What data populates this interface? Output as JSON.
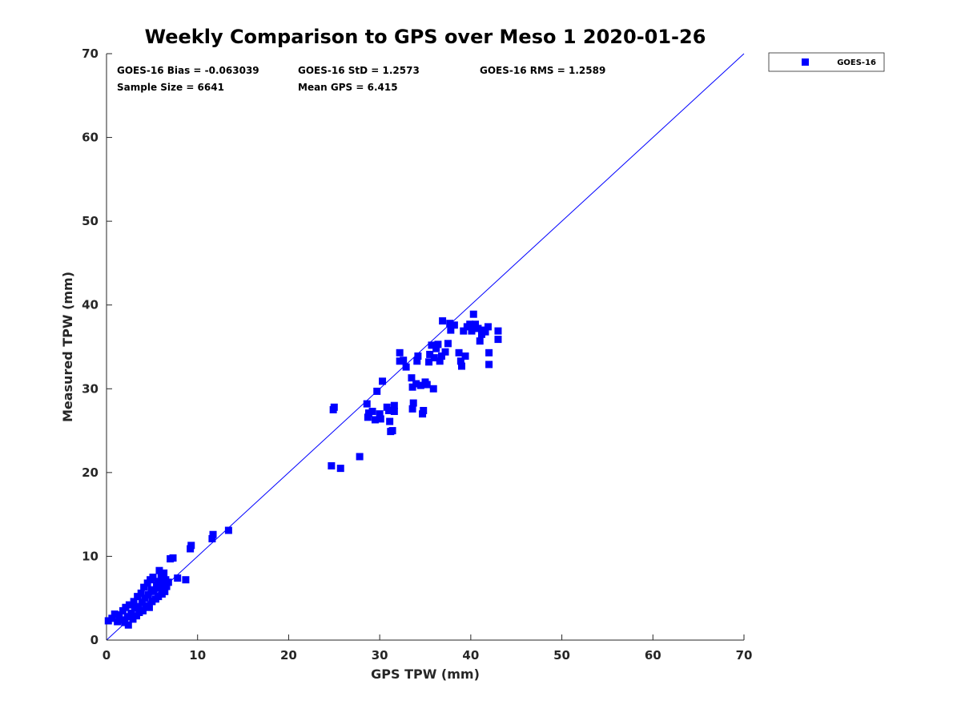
{
  "chart_data": {
    "type": "scatter",
    "title": "Weekly Comparison to GPS over Meso 1 2020-01-26",
    "xlabel": "GPS TPW (mm)",
    "ylabel": "Measured TPW (mm)",
    "xlim": [
      0,
      70
    ],
    "ylim": [
      0,
      70
    ],
    "xticks": [
      "0",
      "10",
      "20",
      "30",
      "40",
      "50",
      "60",
      "70"
    ],
    "yticks": [
      "0",
      "10",
      "20",
      "30",
      "40",
      "50",
      "60",
      "70"
    ],
    "grid": false,
    "legend_position": "outside-top-right",
    "reference_line": {
      "from": [
        0,
        0
      ],
      "to": [
        70,
        70
      ],
      "color": "#0000ff"
    },
    "stats": {
      "bias": "GOES-16 Bias = -0.063039",
      "std": "GOES-16 StD = 1.2573",
      "rms": "GOES-16 RMS = 1.2589",
      "sample_size": "Sample Size = 6641",
      "mean_gps": "Mean GPS = 6.415"
    },
    "series": [
      {
        "name": "GOES-16",
        "color": "#0000ff",
        "marker": "square",
        "points": [
          [
            0.2,
            2.3
          ],
          [
            0.6,
            2.6
          ],
          [
            0.9,
            3.1
          ],
          [
            1.2,
            2.2
          ],
          [
            1.4,
            3.0
          ],
          [
            1.6,
            2.4
          ],
          [
            1.8,
            3.5
          ],
          [
            2.0,
            2.1
          ],
          [
            2.1,
            3.9
          ],
          [
            2.3,
            2.8
          ],
          [
            2.4,
            1.8
          ],
          [
            2.5,
            4.2
          ],
          [
            2.7,
            3.2
          ],
          [
            2.9,
            2.5
          ],
          [
            3.0,
            4.6
          ],
          [
            3.1,
            3.8
          ],
          [
            3.3,
            2.9
          ],
          [
            3.4,
            5.2
          ],
          [
            3.5,
            4.0
          ],
          [
            3.6,
            3.3
          ],
          [
            3.8,
            5.6
          ],
          [
            3.9,
            4.5
          ],
          [
            4.0,
            3.5
          ],
          [
            4.1,
            6.3
          ],
          [
            4.2,
            5.0
          ],
          [
            4.3,
            4.1
          ],
          [
            4.5,
            6.8
          ],
          [
            4.6,
            5.4
          ],
          [
            4.7,
            3.9
          ],
          [
            4.8,
            7.2
          ],
          [
            4.9,
            6.0
          ],
          [
            5.0,
            4.6
          ],
          [
            5.1,
            7.5
          ],
          [
            5.2,
            5.8
          ],
          [
            5.4,
            4.9
          ],
          [
            5.5,
            6.6
          ],
          [
            5.6,
            7.0
          ],
          [
            5.7,
            5.2
          ],
          [
            5.8,
            8.3
          ],
          [
            5.9,
            6.2
          ],
          [
            6.0,
            7.6
          ],
          [
            6.1,
            5.5
          ],
          [
            6.2,
            6.9
          ],
          [
            6.3,
            8.0
          ],
          [
            6.4,
            5.8
          ],
          [
            6.5,
            7.2
          ],
          [
            6.6,
            6.4
          ],
          [
            6.8,
            6.9
          ],
          [
            7.0,
            9.7
          ],
          [
            7.3,
            9.8
          ],
          [
            7.8,
            7.4
          ],
          [
            8.7,
            7.2
          ],
          [
            9.2,
            10.9
          ],
          [
            9.3,
            11.3
          ],
          [
            11.6,
            12.1
          ],
          [
            11.7,
            12.6
          ],
          [
            13.4,
            13.1
          ],
          [
            24.7,
            20.8
          ],
          [
            24.9,
            27.5
          ],
          [
            25.0,
            27.8
          ],
          [
            25.7,
            20.5
          ],
          [
            27.8,
            21.9
          ],
          [
            28.6,
            28.2
          ],
          [
            28.7,
            26.6
          ],
          [
            28.8,
            27.1
          ],
          [
            29.2,
            27.3
          ],
          [
            29.5,
            26.3
          ],
          [
            29.7,
            29.7
          ],
          [
            30.0,
            27.0
          ],
          [
            30.1,
            26.4
          ],
          [
            30.3,
            30.9
          ],
          [
            30.8,
            27.8
          ],
          [
            31.0,
            27.4
          ],
          [
            31.1,
            26.1
          ],
          [
            31.2,
            24.9
          ],
          [
            31.4,
            25.0
          ],
          [
            31.6,
            27.3
          ],
          [
            31.6,
            28.0
          ],
          [
            32.2,
            33.3
          ],
          [
            32.2,
            34.3
          ],
          [
            32.6,
            33.4
          ],
          [
            32.9,
            32.6
          ],
          [
            33.5,
            31.3
          ],
          [
            33.6,
            30.2
          ],
          [
            33.6,
            27.6
          ],
          [
            33.7,
            28.3
          ],
          [
            34.0,
            30.6
          ],
          [
            34.1,
            33.3
          ],
          [
            34.2,
            33.9
          ],
          [
            34.5,
            30.4
          ],
          [
            34.7,
            27.0
          ],
          [
            34.8,
            27.4
          ],
          [
            35.0,
            30.8
          ],
          [
            35.2,
            30.5
          ],
          [
            35.4,
            33.2
          ],
          [
            35.5,
            34.1
          ],
          [
            35.7,
            35.2
          ],
          [
            35.9,
            30.0
          ],
          [
            36.0,
            33.7
          ],
          [
            36.2,
            34.8
          ],
          [
            36.4,
            35.3
          ],
          [
            36.6,
            33.3
          ],
          [
            36.8,
            33.9
          ],
          [
            36.9,
            38.1
          ],
          [
            37.2,
            34.4
          ],
          [
            37.5,
            35.4
          ],
          [
            37.7,
            37.8
          ],
          [
            37.8,
            37.0
          ],
          [
            38.2,
            37.6
          ],
          [
            38.7,
            34.3
          ],
          [
            38.9,
            33.3
          ],
          [
            39.0,
            32.7
          ],
          [
            39.2,
            36.9
          ],
          [
            39.4,
            33.9
          ],
          [
            39.6,
            37.4
          ],
          [
            39.9,
            37.7
          ],
          [
            40.1,
            36.9
          ],
          [
            40.3,
            38.9
          ],
          [
            40.5,
            37.7
          ],
          [
            40.8,
            37.2
          ],
          [
            41.0,
            35.7
          ],
          [
            41.2,
            36.5
          ],
          [
            41.5,
            37.0
          ],
          [
            41.6,
            36.8
          ],
          [
            41.9,
            37.4
          ],
          [
            42.0,
            34.3
          ],
          [
            42.0,
            32.9
          ],
          [
            43.0,
            36.9
          ],
          [
            43.0,
            35.9
          ]
        ]
      }
    ]
  }
}
